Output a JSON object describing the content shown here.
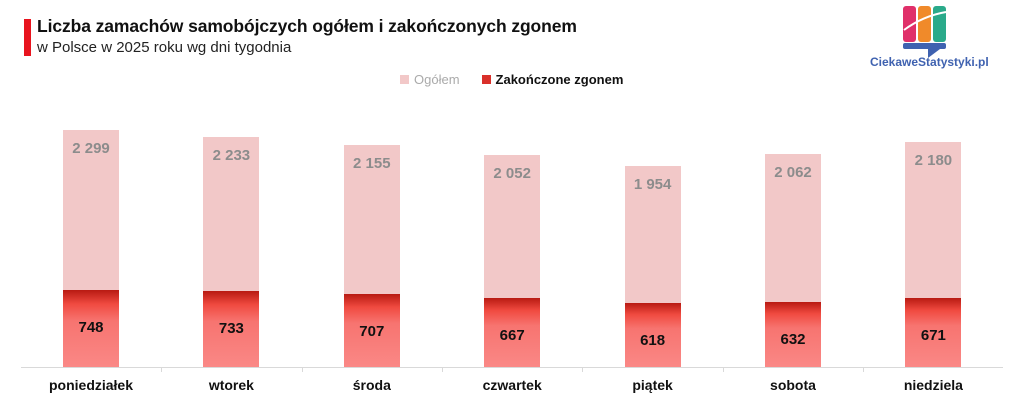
{
  "header": {
    "title": "Liczba zamachów samobójczych ogółem i zakończonych zgonem",
    "subtitle": "w Polsce w 2025 roku wg dni tygodnia",
    "accent_color": "#e8141e"
  },
  "logo": {
    "text": "CiekaweStatystyki.pl",
    "colors": [
      "#e0306a",
      "#f08a2a",
      "#2aaa8a",
      "#3f62b0"
    ]
  },
  "legend": {
    "items": [
      {
        "label": "Ogółem",
        "color": "#f2c8c8"
      },
      {
        "label": "Zakończone zgonem",
        "color": "#e8403a"
      }
    ]
  },
  "chart_data": {
    "type": "bar",
    "title": "Liczba zamachów samobójczych ogółem i zakończonych zgonem",
    "subtitle": "w Polsce w 2025 roku wg dni tygodnia",
    "xlabel": "",
    "ylabel": "",
    "grid": false,
    "legend_position": "top",
    "overlapping": true,
    "categories": [
      "poniedziałek",
      "wtorek",
      "środa",
      "czwartek",
      "piątek",
      "sobota",
      "niedziela"
    ],
    "series": [
      {
        "name": "Ogółem",
        "values": [
          2299,
          2233,
          2155,
          2052,
          1954,
          2062,
          2180
        ],
        "labels": [
          "2 299",
          "2 233",
          "2 155",
          "2 052",
          "1 954",
          "2 062",
          "2 180"
        ],
        "color": "#f2c8c8"
      },
      {
        "name": "Zakończone zgonem",
        "values": [
          748,
          733,
          707,
          667,
          618,
          632,
          671
        ],
        "labels": [
          "748",
          "733",
          "707",
          "667",
          "618",
          "632",
          "671"
        ],
        "color": "#e8403a"
      }
    ],
    "ylim": [
      0,
      2300
    ]
  }
}
